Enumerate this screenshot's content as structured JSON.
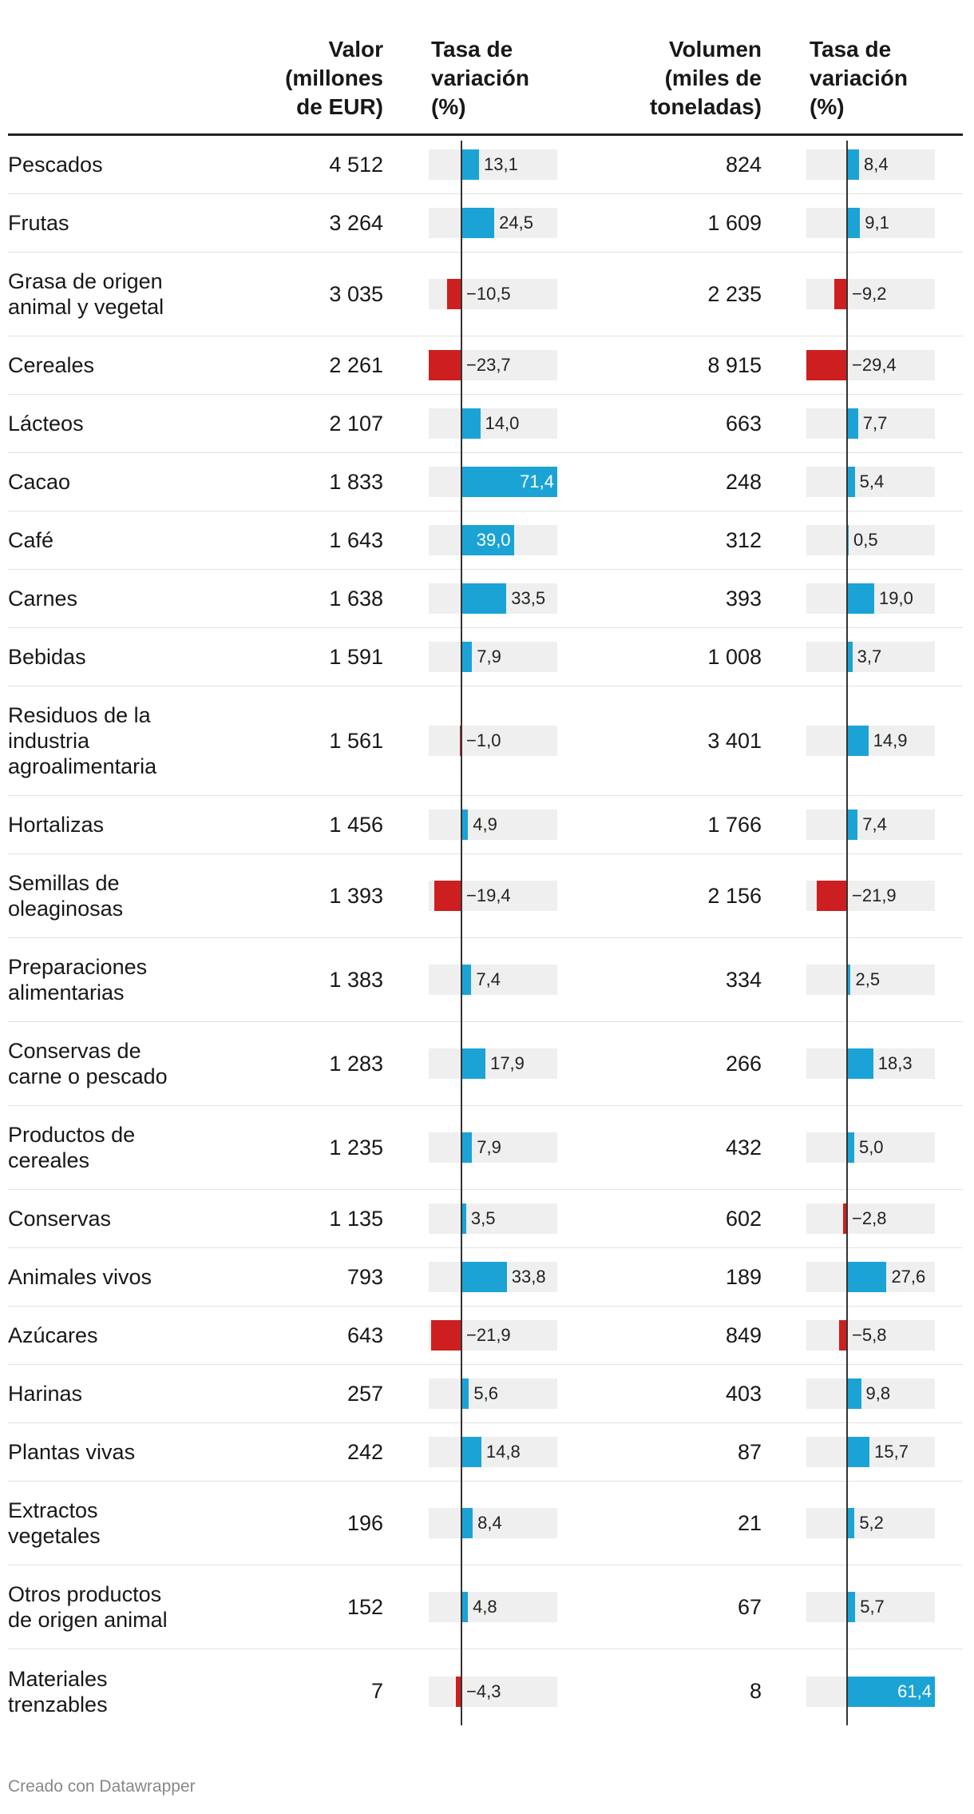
{
  "header": {
    "col_valor": "Valor\n(millones\nde EUR)",
    "col_tasa_valor": "Tasa de\nvariación\n(%)",
    "col_volumen": "Volumen\n(miles de\ntoneladas)",
    "col_tasa_volumen": "Tasa de\nvariación\n(%)"
  },
  "footer": "Creado con Datawrapper",
  "colors": {
    "positive": "#1ba3d6",
    "negative": "#cd1f1f",
    "bar_background": "#efefef"
  },
  "chart_data": {
    "type": "table",
    "value_change_range": [
      -23.7,
      71.4
    ],
    "volume_change_range": [
      -29.4,
      61.4
    ],
    "rows": [
      {
        "name": "Pescados",
        "valor": "4 512",
        "tasa_valor": 13.1,
        "tasa_valor_label": "13,1",
        "volumen": "824",
        "tasa_volumen": 8.4,
        "tasa_volumen_label": "8,4"
      },
      {
        "name": "Frutas",
        "valor": "3 264",
        "tasa_valor": 24.5,
        "tasa_valor_label": "24,5",
        "volumen": "1 609",
        "tasa_volumen": 9.1,
        "tasa_volumen_label": "9,1"
      },
      {
        "name": "Grasa de origen\nanimal y vegetal",
        "valor": "3 035",
        "tasa_valor": -10.5,
        "tasa_valor_label": "−10,5",
        "volumen": "2 235",
        "tasa_volumen": -9.2,
        "tasa_volumen_label": "−9,2"
      },
      {
        "name": "Cereales",
        "valor": "2 261",
        "tasa_valor": -23.7,
        "tasa_valor_label": "−23,7",
        "volumen": "8 915",
        "tasa_volumen": -29.4,
        "tasa_volumen_label": "−29,4"
      },
      {
        "name": "Lácteos",
        "valor": "2 107",
        "tasa_valor": 14.0,
        "tasa_valor_label": "14,0",
        "volumen": "663",
        "tasa_volumen": 7.7,
        "tasa_volumen_label": "7,7"
      },
      {
        "name": "Cacao",
        "valor": "1 833",
        "tasa_valor": 71.4,
        "tasa_valor_label": "71,4",
        "volumen": "248",
        "tasa_volumen": 5.4,
        "tasa_volumen_label": "5,4"
      },
      {
        "name": "Café",
        "valor": "1 643",
        "tasa_valor": 39.0,
        "tasa_valor_label": "39,0",
        "volumen": "312",
        "tasa_volumen": 0.5,
        "tasa_volumen_label": "0,5"
      },
      {
        "name": "Carnes",
        "valor": "1 638",
        "tasa_valor": 33.5,
        "tasa_valor_label": "33,5",
        "volumen": "393",
        "tasa_volumen": 19.0,
        "tasa_volumen_label": "19,0"
      },
      {
        "name": "Bebidas",
        "valor": "1 591",
        "tasa_valor": 7.9,
        "tasa_valor_label": "7,9",
        "volumen": "1 008",
        "tasa_volumen": 3.7,
        "tasa_volumen_label": "3,7"
      },
      {
        "name": "Residuos de la\nindustria\nagroalimentaria",
        "valor": "1 561",
        "tasa_valor": -1.0,
        "tasa_valor_label": "−1,0",
        "volumen": "3 401",
        "tasa_volumen": 14.9,
        "tasa_volumen_label": "14,9"
      },
      {
        "name": "Hortalizas",
        "valor": "1 456",
        "tasa_valor": 4.9,
        "tasa_valor_label": "4,9",
        "volumen": "1 766",
        "tasa_volumen": 7.4,
        "tasa_volumen_label": "7,4"
      },
      {
        "name": "Semillas de\noleaginosas",
        "valor": "1 393",
        "tasa_valor": -19.4,
        "tasa_valor_label": "−19,4",
        "volumen": "2 156",
        "tasa_volumen": -21.9,
        "tasa_volumen_label": "−21,9"
      },
      {
        "name": "Preparaciones\nalimentarias",
        "valor": "1 383",
        "tasa_valor": 7.4,
        "tasa_valor_label": "7,4",
        "volumen": "334",
        "tasa_volumen": 2.5,
        "tasa_volumen_label": "2,5"
      },
      {
        "name": "Conservas de\ncarne o pescado",
        "valor": "1 283",
        "tasa_valor": 17.9,
        "tasa_valor_label": "17,9",
        "volumen": "266",
        "tasa_volumen": 18.3,
        "tasa_volumen_label": "18,3"
      },
      {
        "name": "Productos de\ncereales",
        "valor": "1 235",
        "tasa_valor": 7.9,
        "tasa_valor_label": "7,9",
        "volumen": "432",
        "tasa_volumen": 5.0,
        "tasa_volumen_label": "5,0"
      },
      {
        "name": "Conservas",
        "valor": "1 135",
        "tasa_valor": 3.5,
        "tasa_valor_label": "3,5",
        "volumen": "602",
        "tasa_volumen": -2.8,
        "tasa_volumen_label": "−2,8"
      },
      {
        "name": "Animales vivos",
        "valor": "793",
        "tasa_valor": 33.8,
        "tasa_valor_label": "33,8",
        "volumen": "189",
        "tasa_volumen": 27.6,
        "tasa_volumen_label": "27,6"
      },
      {
        "name": "Azúcares",
        "valor": "643",
        "tasa_valor": -21.9,
        "tasa_valor_label": "−21,9",
        "volumen": "849",
        "tasa_volumen": -5.8,
        "tasa_volumen_label": "−5,8"
      },
      {
        "name": "Harinas",
        "valor": "257",
        "tasa_valor": 5.6,
        "tasa_valor_label": "5,6",
        "volumen": "403",
        "tasa_volumen": 9.8,
        "tasa_volumen_label": "9,8"
      },
      {
        "name": "Plantas vivas",
        "valor": "242",
        "tasa_valor": 14.8,
        "tasa_valor_label": "14,8",
        "volumen": "87",
        "tasa_volumen": 15.7,
        "tasa_volumen_label": "15,7"
      },
      {
        "name": "Extractos\nvegetales",
        "valor": "196",
        "tasa_valor": 8.4,
        "tasa_valor_label": "8,4",
        "volumen": "21",
        "tasa_volumen": 5.2,
        "tasa_volumen_label": "5,2"
      },
      {
        "name": "Otros productos\nde origen animal",
        "valor": "152",
        "tasa_valor": 4.8,
        "tasa_valor_label": "4,8",
        "volumen": "67",
        "tasa_volumen": 5.7,
        "tasa_volumen_label": "5,7"
      },
      {
        "name": "Materiales\ntrenzables",
        "valor": "7",
        "tasa_valor": -4.3,
        "tasa_valor_label": "−4,3",
        "volumen": "8",
        "tasa_volumen": 61.4,
        "tasa_volumen_label": "61,4"
      }
    ]
  }
}
